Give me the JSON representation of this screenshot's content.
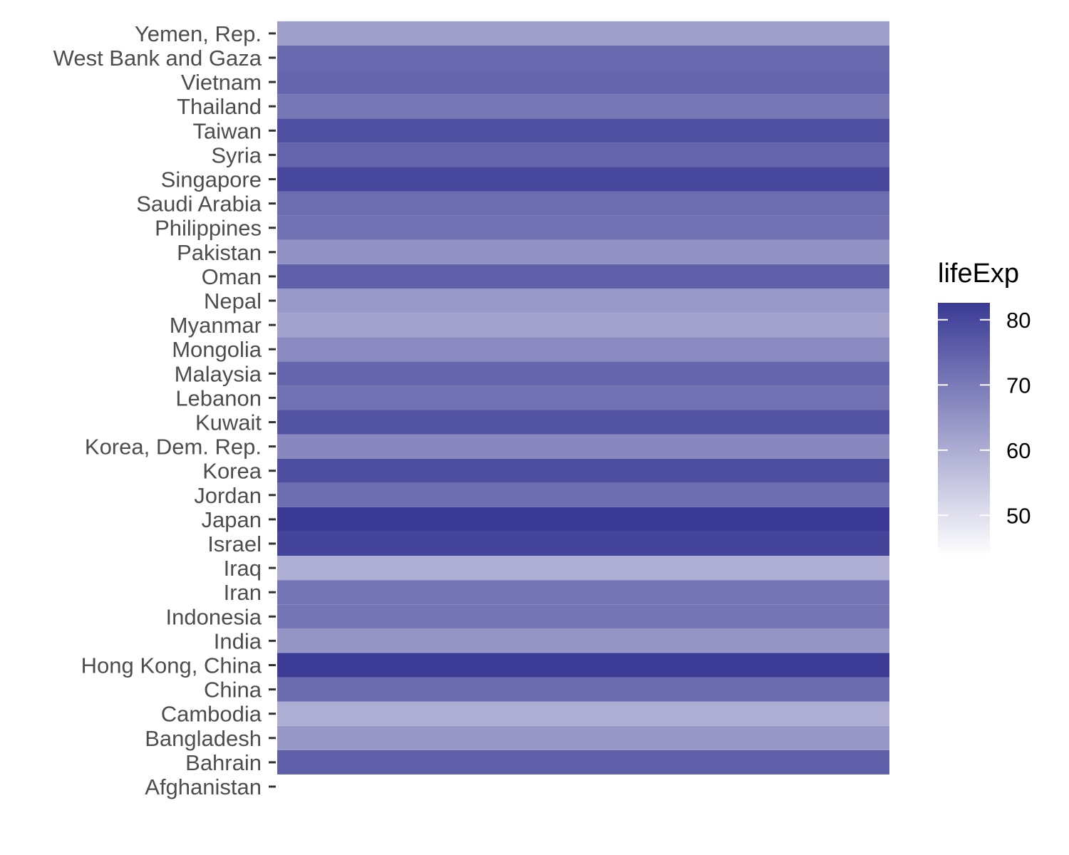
{
  "chart_data": {
    "type": "heatmap",
    "title": "",
    "xlabel": "",
    "ylabel": "",
    "categories": [
      "Afghanistan",
      "Bahrain",
      "Bangladesh",
      "Cambodia",
      "China",
      "Hong Kong, China",
      "India",
      "Indonesia",
      "Iran",
      "Iraq",
      "Israel",
      "Japan",
      "Jordan",
      "Korea",
      "Korea, Dem. Rep.",
      "Kuwait",
      "Lebanon",
      "Malaysia",
      "Mongolia",
      "Myanmar",
      "Nepal",
      "Oman",
      "Pakistan",
      "Philippines",
      "Saudi Arabia",
      "Singapore",
      "Syria",
      "Taiwan",
      "Thailand",
      "Vietnam",
      "West Bank and Gaza",
      "Yemen, Rep."
    ],
    "values": [
      43.8,
      75.6,
      64.1,
      59.7,
      73.0,
      82.2,
      64.7,
      70.7,
      71.0,
      59.5,
      80.7,
      82.6,
      72.5,
      78.6,
      67.3,
      77.6,
      72.0,
      74.2,
      66.8,
      62.1,
      63.8,
      75.6,
      65.5,
      71.7,
      72.8,
      80.0,
      74.1,
      78.4,
      70.6,
      74.2,
      73.4,
      62.7
    ],
    "legend": {
      "title": "lifeExp",
      "ticks": [
        50,
        60,
        70,
        80
      ],
      "range": [
        43.8,
        82.6
      ],
      "position": "right"
    },
    "colors": {
      "low": "#ffffff",
      "high": "#3a3a96"
    },
    "grid": false
  }
}
